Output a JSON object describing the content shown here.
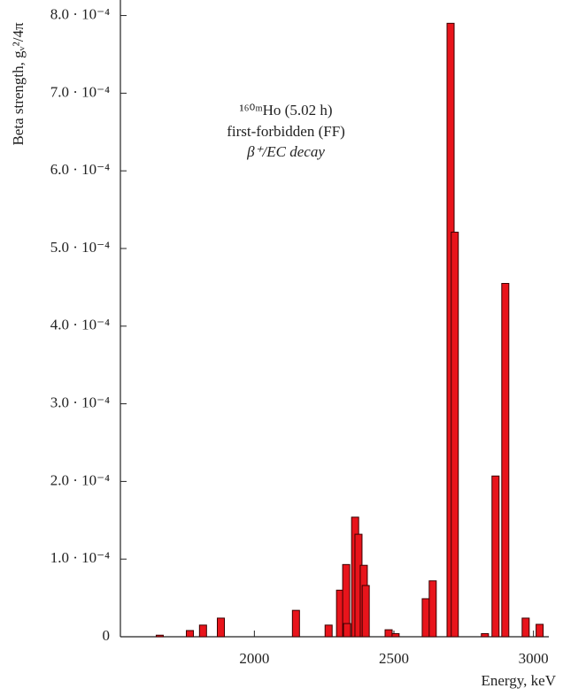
{
  "chart_data": {
    "type": "bar",
    "ylabel": "Beta strength, gᵥ²/4π",
    "xlabel": "Energy, keV",
    "annotation": [
      "¹⁶⁰ᵐHo (5.02 h)",
      "first-forbidden (FF)",
      "β⁺/EC decay"
    ],
    "x": [
      1661,
      1769,
      1816,
      1880,
      2149,
      2266,
      2307,
      2329,
      2332,
      2361,
      2373,
      2392,
      2399,
      2481,
      2506,
      2614,
      2639,
      2703,
      2718,
      2826,
      2864,
      2899,
      2972,
      3022
    ],
    "values": [
      2e-06,
      8e-06,
      1.5e-05,
      2.4e-05,
      3.4e-05,
      1.5e-05,
      6e-05,
      9.3e-05,
      1.7e-05,
      0.000154,
      0.000132,
      9.2e-05,
      6.6e-05,
      9e-06,
      4e-06,
      4.9e-05,
      7.2e-05,
      0.00079,
      0.000521,
      4e-06,
      0.000207,
      0.000455,
      2.4e-05,
      1.6e-05
    ],
    "color": "#e8141b",
    "xlim": [
      1520,
      3055
    ],
    "xticks": [
      2000,
      2500,
      3000
    ],
    "ylim": [
      0,
      0.00082
    ],
    "yticks": [
      0,
      {
        "value": 0.0001,
        "label": "1.0 · 10⁻⁴"
      },
      {
        "value": 0.0002,
        "label": "2.0 · 10⁻⁴"
      },
      {
        "value": 0.0003,
        "label": "3.0 · 10⁻⁴"
      },
      {
        "value": 0.0004,
        "label": "4.0 · 10⁻⁴"
      },
      {
        "value": 0.0005,
        "label": "5.0 · 10⁻⁴"
      },
      {
        "value": 0.0006,
        "label": "6.0 · 10⁻⁴"
      },
      {
        "value": 0.0007,
        "label": "7.0 · 10⁻⁴"
      },
      {
        "value": 0.0008,
        "label": "8.0 · 10⁻⁴"
      }
    ],
    "grid": false
  }
}
